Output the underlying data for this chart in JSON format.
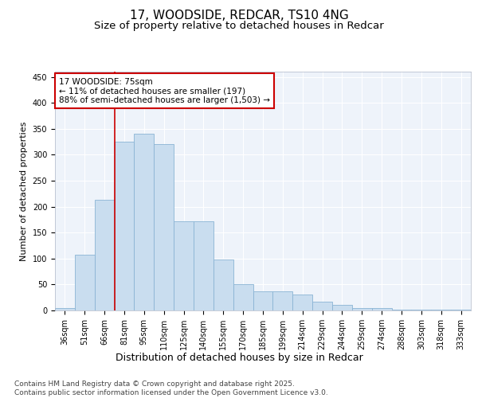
{
  "title": "17, WOODSIDE, REDCAR, TS10 4NG",
  "subtitle": "Size of property relative to detached houses in Redcar",
  "xlabel": "Distribution of detached houses by size in Redcar",
  "ylabel": "Number of detached properties",
  "bar_color": "#c9ddef",
  "bar_edge_color": "#8ab4d4",
  "background_color": "#eef3fa",
  "grid_color": "#ffffff",
  "categories": [
    "36sqm",
    "51sqm",
    "66sqm",
    "81sqm",
    "95sqm",
    "110sqm",
    "125sqm",
    "140sqm",
    "155sqm",
    "170sqm",
    "185sqm",
    "199sqm",
    "214sqm",
    "229sqm",
    "244sqm",
    "259sqm",
    "274sqm",
    "288sqm",
    "303sqm",
    "318sqm",
    "333sqm"
  ],
  "values": [
    5,
    107,
    213,
    325,
    340,
    320,
    172,
    172,
    98,
    50,
    37,
    37,
    30,
    17,
    10,
    5,
    5,
    2,
    1,
    1,
    1
  ],
  "ylim": [
    0,
    460
  ],
  "yticks": [
    0,
    50,
    100,
    150,
    200,
    250,
    300,
    350,
    400,
    450
  ],
  "vline_x": 2.5,
  "vline_color": "#cc0000",
  "annotation_text": "17 WOODSIDE: 75sqm\n← 11% of detached houses are smaller (197)\n88% of semi-detached houses are larger (1,503) →",
  "annotation_box_color": "#ffffff",
  "annotation_box_edge_color": "#cc0000",
  "footer_text": "Contains HM Land Registry data © Crown copyright and database right 2025.\nContains public sector information licensed under the Open Government Licence v3.0.",
  "title_fontsize": 11,
  "subtitle_fontsize": 9.5,
  "xlabel_fontsize": 9,
  "ylabel_fontsize": 8,
  "tick_fontsize": 7,
  "annotation_fontsize": 7.5,
  "footer_fontsize": 6.5
}
